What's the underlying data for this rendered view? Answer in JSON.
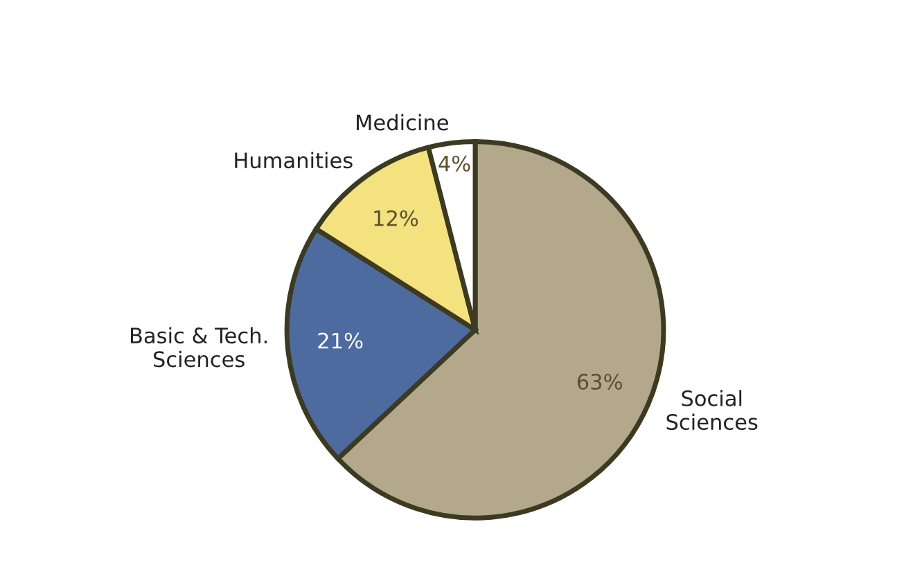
{
  "chart_data": {
    "type": "pie",
    "categories": [
      "Social\nSciences",
      "Basic & Tech.\nSciences",
      "Humanities",
      "Medicine"
    ],
    "values": [
      63,
      21,
      12,
      4
    ],
    "value_labels": [
      "63%",
      "21%",
      "12%",
      "4%"
    ],
    "colors": [
      "#b3a88c",
      "#4d6b9e",
      "#f3e27e",
      "#ffffff"
    ],
    "legend": false
  }
}
